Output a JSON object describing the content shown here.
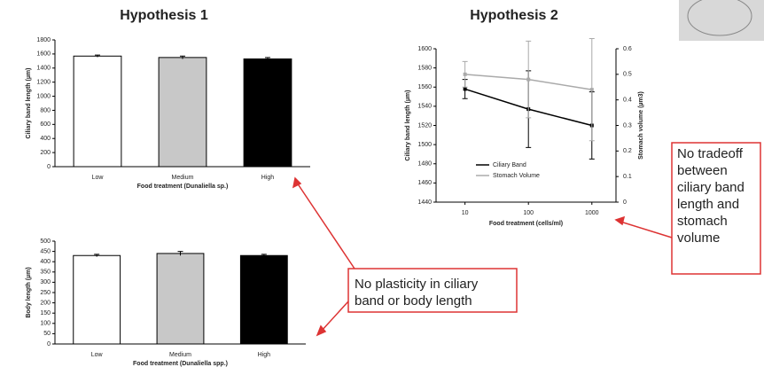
{
  "headings": [
    "Hypothesis 1",
    "Hypothesis 2"
  ],
  "annotations": [
    {
      "lines": [
        "No plasticity in ciliary",
        "band or body length"
      ]
    },
    {
      "lines": [
        "No tradeoff",
        "between",
        "ciliary band",
        "length and",
        "stomach",
        "volume"
      ]
    }
  ],
  "chart_data": [
    {
      "type": "bar",
      "ylabel": "Ciliary band length (µm)",
      "xlabel": "Food treatment (Dunaliella sp.)",
      "categories": [
        "Low",
        "Medium",
        "High"
      ],
      "values": [
        1570,
        1550,
        1530
      ],
      "errors": [
        15,
        20,
        20
      ],
      "colors": [
        "#ffffff",
        "#c8c8c8",
        "#000000"
      ],
      "ylim": [
        0,
        1800
      ],
      "yticks": [
        0,
        200,
        400,
        600,
        800,
        1000,
        1200,
        1400,
        1600,
        1800
      ]
    },
    {
      "type": "bar",
      "ylabel": "Body length (µm)",
      "xlabel": "Food treatment (Dunaliella spp.)",
      "categories": [
        "Low",
        "Medium",
        "High"
      ],
      "values": [
        430,
        440,
        430
      ],
      "errors": [
        6,
        10,
        6
      ],
      "colors": [
        "#ffffff",
        "#c8c8c8",
        "#000000"
      ],
      "ylim": [
        0,
        500
      ],
      "yticks": [
        0,
        50,
        100,
        150,
        200,
        250,
        300,
        350,
        400,
        450,
        500
      ]
    },
    {
      "type": "line",
      "ylabel": "Ciliary band length (µm)",
      "y2label": "Stomach volume (µm3)",
      "xlabel": "Food treatment (cells/ml)",
      "log_x": true,
      "x": [
        10,
        100,
        1000
      ],
      "xlim": [
        3.5,
        2400
      ],
      "xticks": [
        10,
        100,
        1000
      ],
      "ylim": [
        1440,
        1600
      ],
      "yticks": [
        1440,
        1460,
        1480,
        1500,
        1520,
        1540,
        1560,
        1580,
        1600
      ],
      "y2lim": [
        0,
        0.6
      ],
      "y2ticks": [
        0,
        0.1,
        0.2,
        0.3,
        0.4,
        0.5,
        0.6
      ],
      "series": [
        {
          "name": "Ciliary Band",
          "color": "#000000",
          "values": [
            1558,
            1537,
            1520
          ],
          "errors": [
            10,
            40,
            35
          ]
        },
        {
          "name": "Stomach Volume",
          "color": "#aaaaaa",
          "axis": "y2",
          "values": [
            0.5,
            0.48,
            0.44
          ],
          "errors": [
            0.05,
            0.15,
            0.2
          ]
        }
      ]
    }
  ]
}
